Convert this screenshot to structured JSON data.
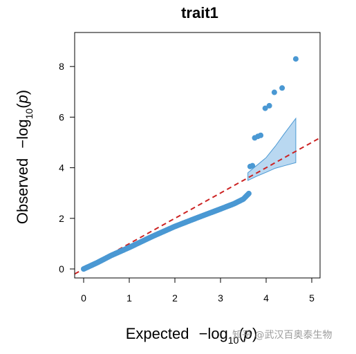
{
  "chart_data": {
    "type": "scatter",
    "title": "trait1",
    "xlabel": {
      "prefix": "Expected",
      "expr": "−log",
      "sub": "10",
      "open": "(",
      "var": "p",
      "close": ")"
    },
    "ylabel": {
      "prefix": "Observed",
      "expr": "−log",
      "sub": "10",
      "open": "(",
      "var": "p",
      "close": ")"
    },
    "xlim": [
      0,
      5
    ],
    "ylim": [
      0,
      8.6
    ],
    "x_ticks": [
      "0",
      "1",
      "2",
      "3",
      "4",
      "5"
    ],
    "y_ticks": [
      "0",
      "2",
      "4",
      "6",
      "8"
    ],
    "point_color": "#4a98d3",
    "band_color": "#b9d8f1",
    "reference_line": {
      "slope": 1,
      "intercept": 0,
      "color": "#cc2222",
      "style": "dashed"
    },
    "confidence_band": {
      "x": [
        3.6,
        3.8,
        4.0,
        4.2,
        4.4,
        4.65
      ],
      "upper": [
        3.8,
        4.1,
        4.4,
        4.85,
        5.35,
        5.95
      ],
      "lower": [
        3.5,
        3.67,
        3.82,
        3.98,
        4.08,
        4.2
      ]
    },
    "curve": {
      "x": [
        0.0,
        0.3,
        0.6,
        1.0,
        1.5,
        2.0,
        2.5,
        3.0,
        3.3,
        3.5,
        3.62
      ],
      "y": [
        0.0,
        0.25,
        0.53,
        0.85,
        1.28,
        1.68,
        2.03,
        2.37,
        2.58,
        2.76,
        2.98
      ]
    },
    "top_points": [
      {
        "x": 3.65,
        "y": 4.05
      },
      {
        "x": 3.7,
        "y": 4.08
      },
      {
        "x": 3.75,
        "y": 5.18
      },
      {
        "x": 3.82,
        "y": 5.24
      },
      {
        "x": 3.88,
        "y": 5.28
      },
      {
        "x": 3.98,
        "y": 6.35
      },
      {
        "x": 4.07,
        "y": 6.45
      },
      {
        "x": 4.18,
        "y": 6.98
      },
      {
        "x": 4.35,
        "y": 7.15
      },
      {
        "x": 4.65,
        "y": 8.3
      }
    ]
  },
  "watermark": "知乎 @武汉百奥泰生物"
}
